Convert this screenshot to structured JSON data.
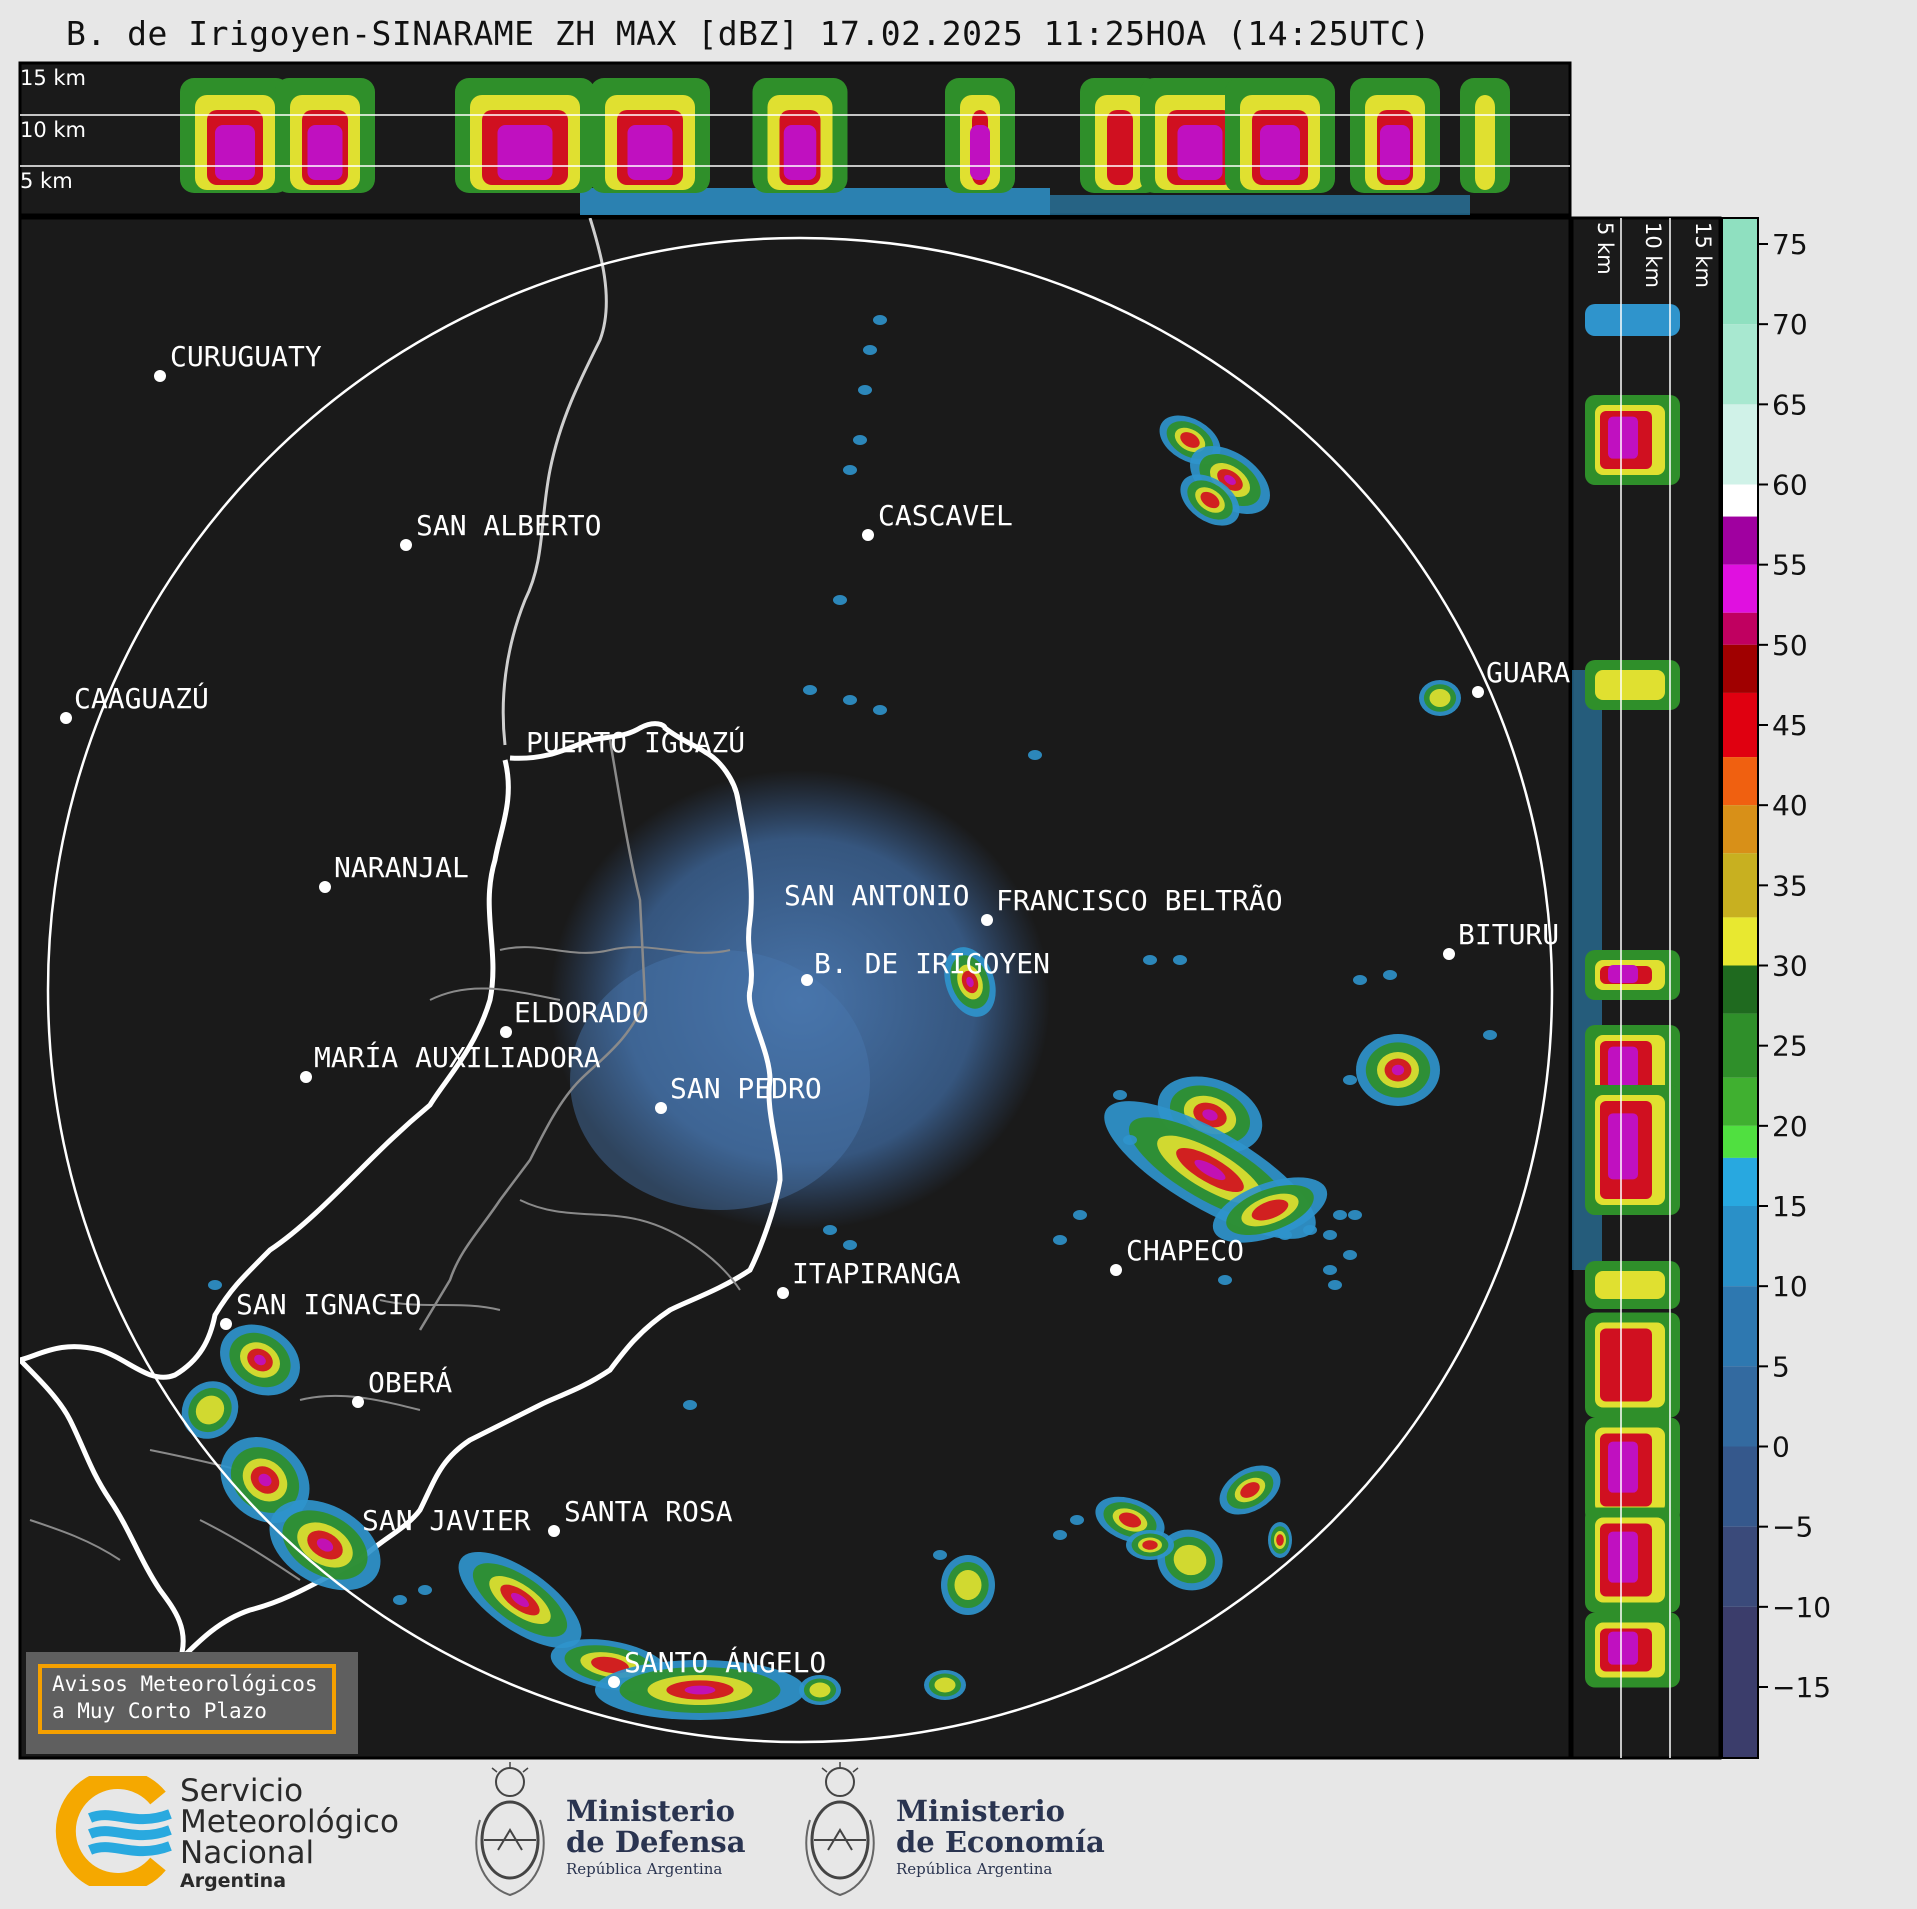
{
  "title": "B. de Irigoyen-SINARAME ZH MAX [dBZ] 17.02.2025 11:25HOA (14:25UTC)",
  "top_panel": {
    "height_labels": [
      "15 km",
      "10 km",
      "5 km"
    ]
  },
  "side_panel": {
    "height_labels": [
      "5 km",
      "10 km",
      "15 km"
    ]
  },
  "colorbar": {
    "ticks": [
      "75",
      "70",
      "65",
      "60",
      "55",
      "50",
      "45",
      "40",
      "35",
      "30",
      "25",
      "20",
      "15",
      "10",
      "5",
      "0",
      "−5",
      "−10",
      "−15"
    ],
    "colors": {
      "neg": "#3b3d6b",
      "blue": "#2f94cc",
      "green": "#2f8f2a",
      "yellow": "#e0e030",
      "orange": "#e08a10",
      "red": "#d01020",
      "magenta": "#c010c0",
      "white": "#ffffff",
      "cyan": "#80e0c0"
    }
  },
  "cities": [
    {
      "name": "CURUGUATY"
    },
    {
      "name": "SAN ALBERTO"
    },
    {
      "name": "CASCAVEL"
    },
    {
      "name": "CAAGUAZÚ"
    },
    {
      "name": "GUARA"
    },
    {
      "name": "PUERTO IGUAZÚ"
    },
    {
      "name": "NARANJAL"
    },
    {
      "name": "SAN ANTONIO"
    },
    {
      "name": "FRANCISCO BELTRÃO"
    },
    {
      "name": "BITURU"
    },
    {
      "name": "B. DE IRIGOYEN"
    },
    {
      "name": "ELDORADO"
    },
    {
      "name": "MARÍA AUXILIADORA"
    },
    {
      "name": "SAN PEDRO"
    },
    {
      "name": "CHAPECO"
    },
    {
      "name": "ITAPIRANGA"
    },
    {
      "name": "SAN IGNACIO"
    },
    {
      "name": "OBERÁ"
    },
    {
      "name": "SAN JAVIER"
    },
    {
      "name": "SANTA ROSA"
    },
    {
      "name": "SANTO ÁNGELO"
    }
  ],
  "alert": {
    "line1": "Avisos Meteorológicos",
    "line2": "a Muy Corto Plazo"
  },
  "logos": {
    "smn": {
      "line1": "Servicio",
      "line2": "Meteorológico",
      "line3": "Nacional",
      "country": "Argentina"
    },
    "defensa": {
      "line1": "Ministerio",
      "line2": "de Defensa",
      "line3": "República Argentina"
    },
    "economia": {
      "line1": "Ministerio",
      "line2": "de Economía",
      "line3": "República Argentina"
    }
  }
}
